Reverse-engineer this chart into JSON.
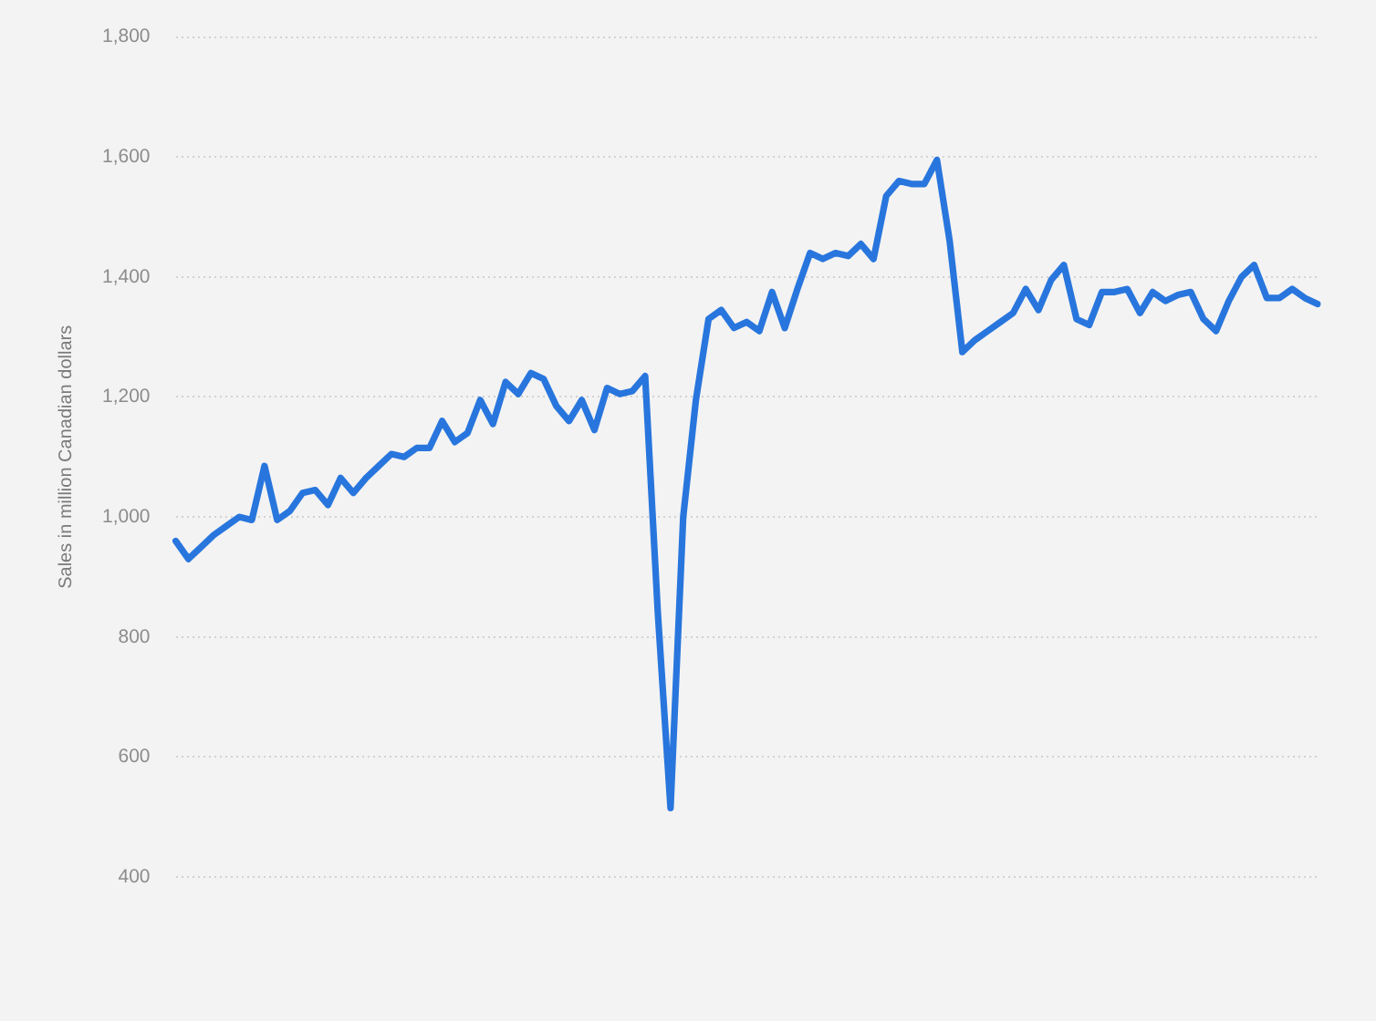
{
  "chart_data": {
    "type": "line",
    "ylabel": "Sales in million Canadian dollars",
    "categories": [
      null,
      null,
      null,
      null,
      null,
      null,
      null,
      null,
      null,
      null,
      null,
      null,
      null,
      null,
      null,
      null,
      null,
      null,
      null,
      null,
      null,
      null,
      null,
      null,
      null,
      null,
      null,
      null,
      null,
      null,
      null,
      null,
      null,
      null,
      null,
      null,
      null,
      null,
      null,
      null,
      null,
      null,
      null,
      null,
      null,
      null,
      null,
      null,
      null,
      null,
      null,
      null,
      null,
      null,
      null,
      null,
      null,
      null,
      null,
      null,
      null,
      null,
      null,
      null,
      null,
      null,
      null,
      null,
      null,
      null,
      null,
      null,
      null,
      null,
      null,
      null,
      null,
      null,
      null,
      null,
      null,
      null,
      null,
      null,
      null,
      null,
      null,
      null,
      null,
      null,
      null
    ],
    "series": [
      {
        "color": "#2876dd",
        "values": [
          960,
          930,
          950,
          970,
          985,
          1000,
          995,
          1085,
          995,
          1010,
          1040,
          1045,
          1020,
          1065,
          1040,
          1065,
          1085,
          1105,
          1100,
          1115,
          1115,
          1160,
          1125,
          1140,
          1195,
          1155,
          1225,
          1205,
          1240,
          1230,
          1185,
          1160,
          1195,
          1145,
          1215,
          1205,
          1210,
          1235,
          840,
          515,
          1000,
          1195,
          1330,
          1345,
          1315,
          1325,
          1310,
          1375,
          1315,
          1380,
          1440,
          1430,
          1440,
          1435,
          1455,
          1430,
          1535,
          1560,
          1555,
          1555,
          1595,
          1460,
          1275,
          1295,
          1310,
          1325,
          1340,
          1380,
          1345,
          1395,
          1420,
          1330,
          1320,
          1375,
          1375,
          1380,
          1340,
          1375,
          1360,
          1370,
          1375,
          1330,
          1310,
          1360,
          1400,
          1420,
          1365,
          1365,
          1380,
          1365,
          1355
        ]
      }
    ],
    "ylim": [
      400,
      1800
    ],
    "yticks": [
      400,
      600,
      800,
      {
        "value": 1000,
        "label": "1,000"
      },
      {
        "value": 1200,
        "label": "1,200"
      },
      {
        "value": 1400,
        "label": "1,400"
      },
      {
        "value": 1600,
        "label": "1,600"
      },
      {
        "value": 1800,
        "label": "1,800"
      }
    ],
    "grid": "y",
    "legend": false,
    "tick_labels": "y",
    "marker": "none",
    "line_style": "solid"
  }
}
